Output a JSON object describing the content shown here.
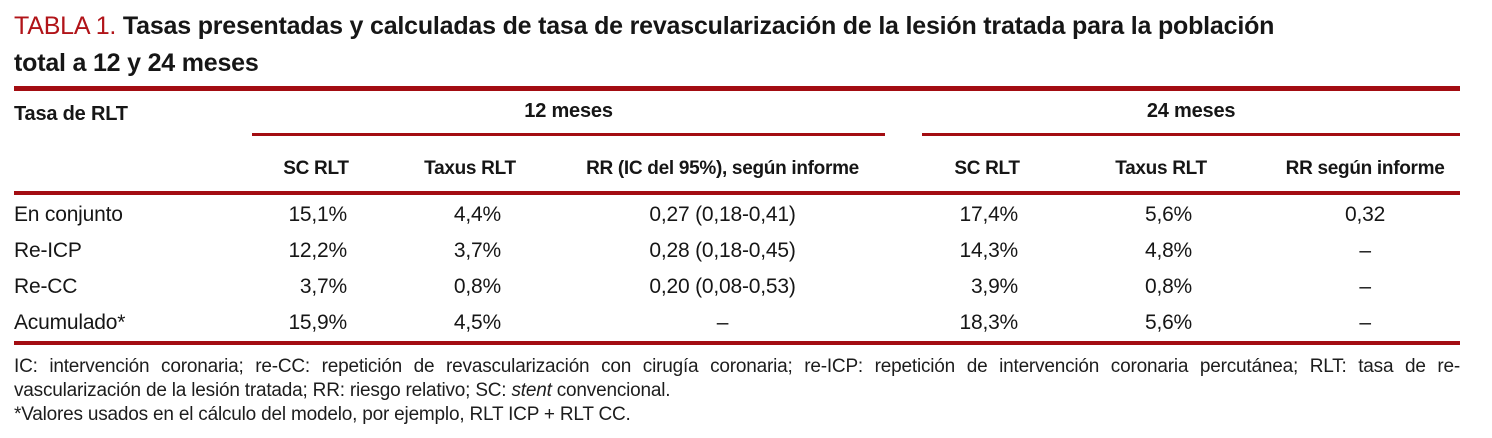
{
  "title": {
    "label": "TABLA 1.",
    "part1": "Tasas presentadas y calculadas de tasa de revascularización de la lesión tratada para la población",
    "part2": "total a 12 y 24 meses"
  },
  "table": {
    "row_header": "Tasa de RLT",
    "groups": [
      {
        "label": "12 meses"
      },
      {
        "label": "24 meses"
      }
    ],
    "columns": [
      "SC RLT",
      "Taxus RLT",
      "RR (IC del 95%), según informe",
      "SC RLT",
      "Taxus RLT",
      "RR según informe"
    ],
    "rows": [
      {
        "label": "En conjunto",
        "values": [
          "15,1%",
          "4,4%",
          "0,27 (0,18-0,41)",
          "17,4%",
          "5,6%",
          "0,32"
        ]
      },
      {
        "label": "Re-ICP",
        "values": [
          "12,2%",
          "3,7%",
          "0,28 (0,18-0,45)",
          "14,3%",
          "4,8%",
          "–"
        ]
      },
      {
        "label": "Re-CC",
        "values": [
          "3,7%",
          "0,8%",
          "0,20 (0,08-0,53)",
          "3,9%",
          "0,8%",
          "–"
        ]
      },
      {
        "label": "Acumulado*",
        "values": [
          "15,9%",
          "4,5%",
          "–",
          "18,3%",
          "5,6%",
          "–"
        ]
      }
    ]
  },
  "footnotes": {
    "line1": "IC: intervención coronaria; re-CC: repetición de revascularización con cirugía coronaria; re-ICP: repetición de intervención coronaria percutánea; RLT: tasa de re-",
    "line2_pre": "vascularización de la lesión tratada; RR: riesgo relativo; SC: ",
    "line2_italic": "stent",
    "line2_post": " convencional.",
    "line3": "*Valores usados en el cálculo del modelo, por ejemplo, RLT ICP + RLT CC."
  },
  "colors": {
    "accent_red": "#a30d12",
    "title_red": "#b11419",
    "text": "#161616"
  }
}
